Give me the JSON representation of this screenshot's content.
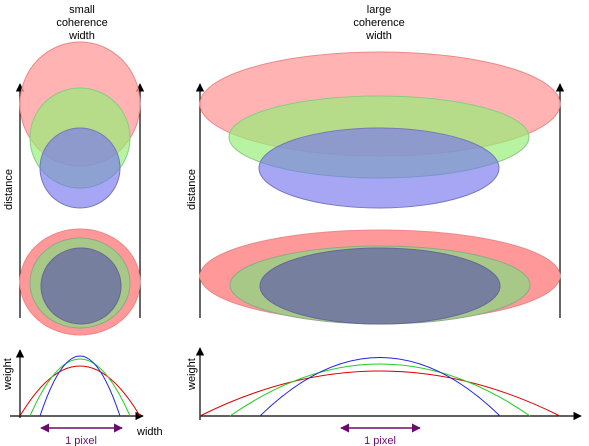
{
  "headings": {
    "small": [
      "small",
      "coherence",
      "width"
    ],
    "large": [
      "large",
      "coherence",
      "width"
    ]
  },
  "axis_labels": {
    "distance": "distance",
    "weight": "weight",
    "width": "width",
    "pixel": "1 pixel"
  },
  "colors": {
    "red_fill": "#ff9999",
    "green_fill": "#99ee77",
    "blue_fill": "#7777ee",
    "red_line": "#e00000",
    "green_line": "#22cc22",
    "blue_line": "#2222dd",
    "arrow_purple": "#6a0c6e"
  },
  "series": [
    "red",
    "green",
    "blue"
  ]
}
